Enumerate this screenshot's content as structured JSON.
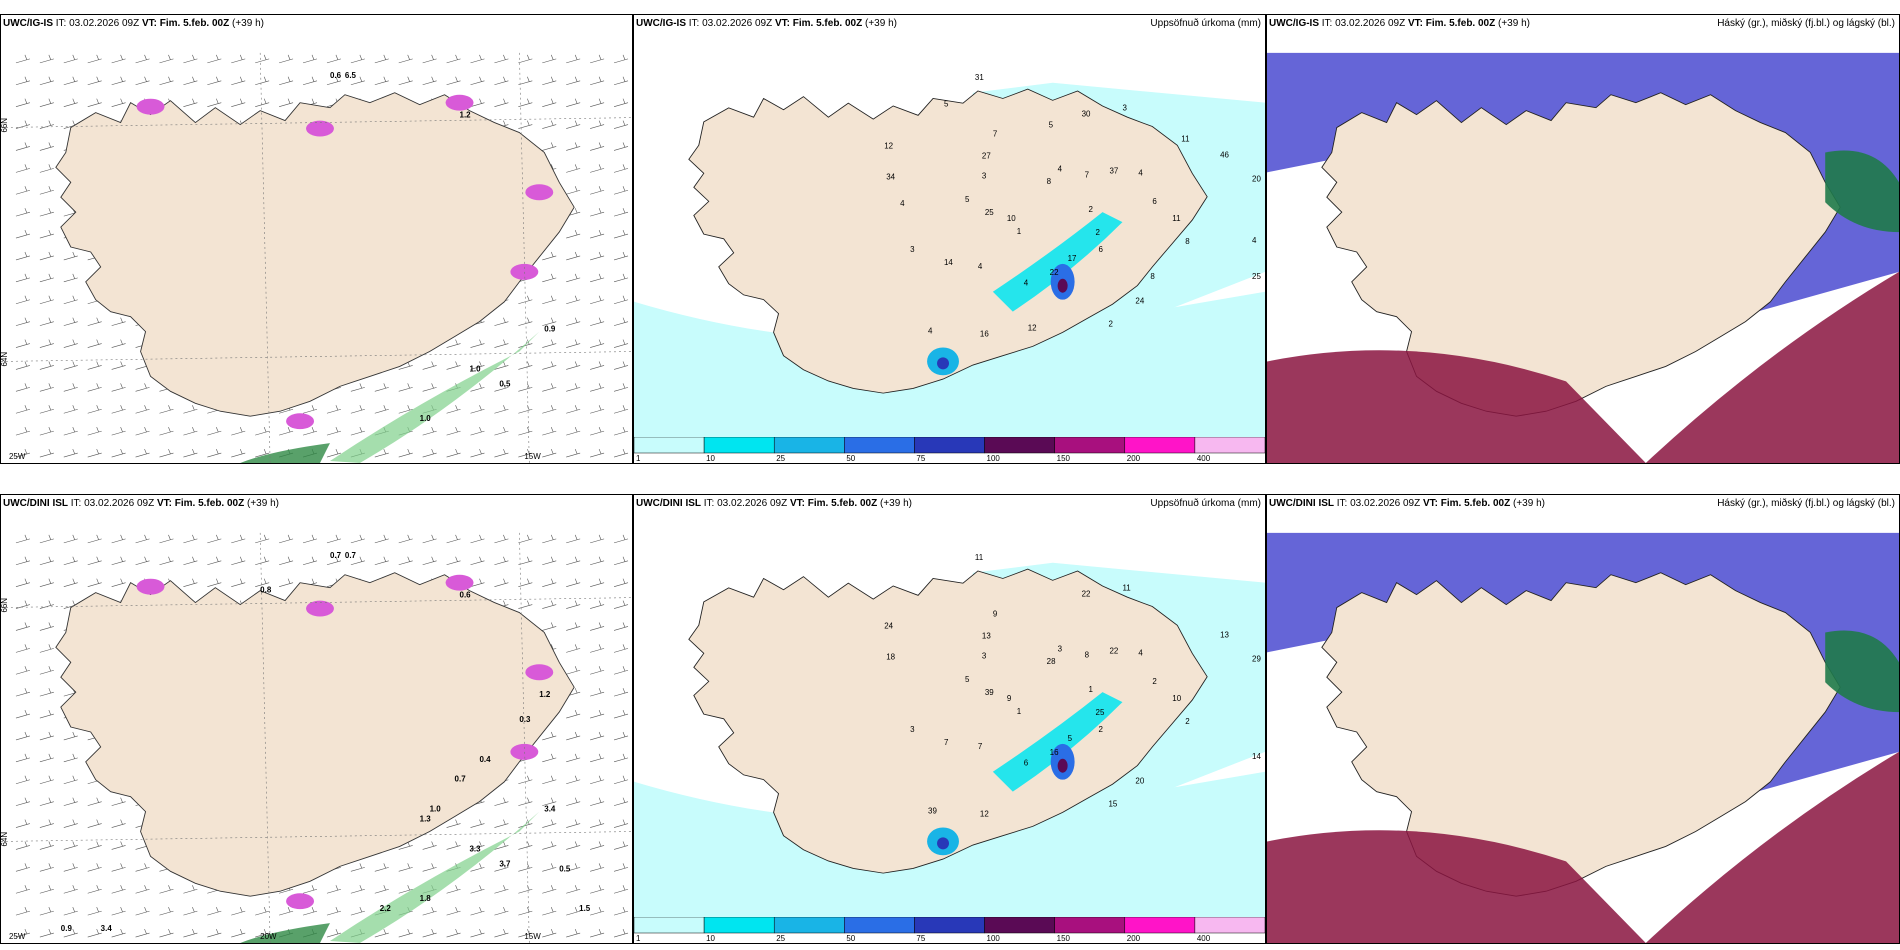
{
  "panels": [
    {
      "id": "p1",
      "model": "UWC/IG-IS",
      "it_label": "IT:",
      "it_value": "03.02.2026 09Z",
      "vt_label": "VT:",
      "vt_value": "Fim. 5.feb. 00Z",
      "lead": "(+39 h)",
      "right_title": "",
      "kind": "wind",
      "lat_labels": [
        "66N",
        "64N"
      ],
      "lon_labels": [
        "25W",
        "15W"
      ],
      "numbers": [
        "0.6",
        "6.5",
        "1.2",
        "0.9",
        "1.0",
        "0.5",
        "1.0"
      ]
    },
    {
      "id": "p2",
      "model": "UWC/IG-IS",
      "it_label": "IT:",
      "it_value": "03.02.2026 09Z",
      "vt_label": "VT:",
      "vt_value": "Fim. 5.feb. 00Z",
      "lead": "(+39 h)",
      "right_title": "Uppsöfnuð úrkoma (mm)",
      "kind": "precip",
      "numbers": [
        "2",
        "1",
        "4",
        "6",
        "5",
        "4",
        "4",
        "7",
        "8",
        "3",
        "3",
        "2",
        "12",
        "20",
        "4",
        "8",
        "2",
        "25",
        "37",
        "22",
        "27",
        "11",
        "14",
        "30",
        "24",
        "34",
        "46",
        "16",
        "31",
        "25",
        "10",
        "7",
        "17",
        "3",
        "6",
        "4",
        "5",
        "8",
        "4",
        "11",
        "12",
        "5",
        "4"
      ],
      "colorbar": [
        "1",
        "10",
        "25",
        "50",
        "75",
        "100",
        "150",
        "200",
        "400"
      ]
    },
    {
      "id": "p3",
      "model": "UWC/IG-IS",
      "it_label": "IT:",
      "it_value": "03.02.2026 09Z",
      "vt_label": "VT:",
      "vt_value": "Fim. 5.feb. 00Z",
      "lead": "(+39 h)",
      "right_title": "Háský (gr.), miðský (fj.bl.) og lágský (bl.)",
      "kind": "cloud"
    },
    {
      "id": "p4",
      "model": "UWC/DINI ISL",
      "it_label": "IT:",
      "it_value": "03.02.2026 09Z",
      "vt_label": "VT:",
      "vt_value": "Fim. 5.feb. 00Z",
      "lead": "(+39 h)",
      "right_title": "",
      "kind": "wind",
      "lat_labels": [
        "66N",
        "64N"
      ],
      "lon_labels": [
        "25W",
        "20W",
        "15W"
      ],
      "numbers": [
        "0.7",
        "0.7",
        "0.6",
        "3.4",
        "3.3",
        "3.7",
        "1.8",
        "2.2",
        "0.5",
        "1.0",
        "0.8",
        "1.2",
        "0.3",
        "0.4",
        "0.7",
        "1.3",
        "0.9",
        "3.4",
        "1.5"
      ]
    },
    {
      "id": "p5",
      "model": "UWC/DINI ISL",
      "it_label": "IT:",
      "it_value": "03.02.2026 09Z",
      "vt_label": "VT:",
      "vt_value": "Fim. 5.feb. 00Z",
      "lead": "(+39 h)",
      "right_title": "Uppsöfnuð úrkoma (mm)",
      "kind": "precip",
      "numbers": [
        "1",
        "1",
        "3",
        "2",
        "5",
        "4",
        "6",
        "9",
        "2",
        "3",
        "11",
        "15",
        "24",
        "29",
        "39",
        "28",
        "25",
        "39",
        "22",
        "16",
        "13",
        "10",
        "7",
        "22",
        "20",
        "18",
        "13",
        "12",
        "11",
        "14",
        "9",
        "8",
        "5",
        "3",
        "2",
        "7"
      ],
      "colorbar": [
        "1",
        "10",
        "25",
        "50",
        "75",
        "100",
        "150",
        "200",
        "400"
      ]
    },
    {
      "id": "p6",
      "model": "UWC/DINI ISL",
      "it_label": "IT:",
      "it_value": "03.02.2026 09Z",
      "vt_label": "VT:",
      "vt_value": "Fim. 5.feb. 00Z",
      "lead": "(+39 h)",
      "right_title": "Háský (gr.), miðský (fj.bl.) og lágský (bl.)",
      "kind": "cloud"
    }
  ],
  "colors": {
    "land": "#f3e4d3",
    "precip_levels": [
      "#c8fcfc",
      "#00e5f0",
      "#19b4e6",
      "#2a6ee6",
      "#2838b8",
      "#5a0a55",
      "#a8107e",
      "#ff14c8",
      "#f7b8f0"
    ],
    "cloud_high": "#1f7a4a",
    "cloud_mid": "#4a4ad0",
    "cloud_low": "#8a1440"
  }
}
